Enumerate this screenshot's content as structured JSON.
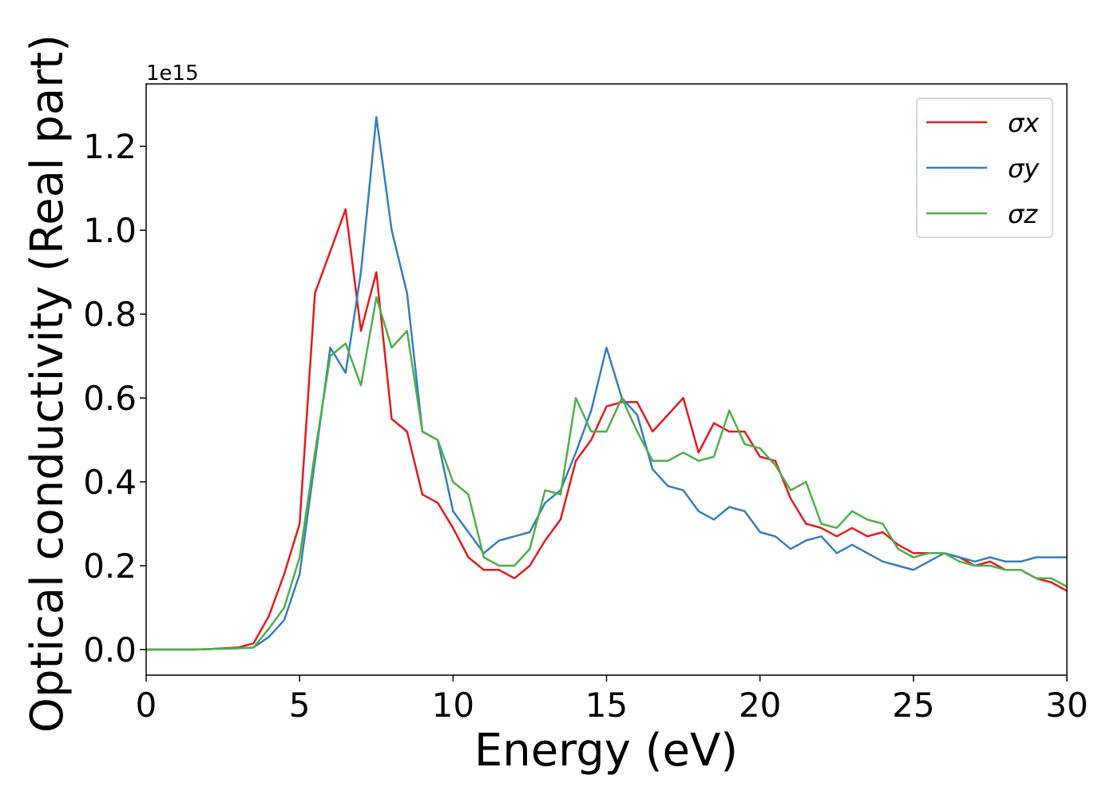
{
  "chart_data": {
    "type": "line",
    "x_label": "Energy (eV)",
    "y_label": "Optical conductivity (Real part)",
    "y_offset_label": "1e15",
    "x": [
      0,
      0.5,
      1,
      1.5,
      2,
      2.5,
      3,
      3.5,
      4,
      4.5,
      5,
      5.5,
      6,
      6.5,
      7,
      7.5,
      8,
      8.5,
      9,
      9.5,
      10,
      10.5,
      11,
      11.5,
      12,
      12.5,
      13,
      13.5,
      14,
      14.5,
      15,
      15.5,
      16,
      16.5,
      17,
      17.5,
      18,
      18.5,
      19,
      19.5,
      20,
      20.5,
      21,
      21.5,
      22,
      22.5,
      23,
      23.5,
      24,
      24.5,
      25,
      25.5,
      26,
      26.5,
      27,
      27.5,
      28,
      28.5,
      29,
      29.5,
      30
    ],
    "series": [
      {
        "name": "σx",
        "color": "#e41a1c",
        "values": [
          0,
          0,
          0,
          0,
          0.001,
          0.003,
          0.005,
          0.015,
          0.08,
          0.18,
          0.3,
          0.85,
          0.95,
          1.05,
          0.76,
          0.9,
          0.55,
          0.52,
          0.37,
          0.35,
          0.29,
          0.22,
          0.19,
          0.19,
          0.17,
          0.2,
          0.26,
          0.31,
          0.45,
          0.5,
          0.58,
          0.59,
          0.59,
          0.52,
          0.56,
          0.6,
          0.47,
          0.54,
          0.52,
          0.52,
          0.46,
          0.45,
          0.36,
          0.3,
          0.29,
          0.27,
          0.29,
          0.27,
          0.28,
          0.25,
          0.23,
          0.23,
          0.23,
          0.22,
          0.2,
          0.21,
          0.19,
          0.19,
          0.17,
          0.16,
          0.14
        ]
      },
      {
        "name": "σy",
        "color": "#377eb8",
        "values": [
          0,
          0,
          0,
          0,
          0.001,
          0.002,
          0.003,
          0.005,
          0.03,
          0.07,
          0.18,
          0.45,
          0.72,
          0.66,
          0.9,
          1.27,
          1.0,
          0.85,
          0.52,
          0.5,
          0.33,
          0.28,
          0.23,
          0.26,
          0.27,
          0.28,
          0.35,
          0.38,
          0.47,
          0.57,
          0.72,
          0.6,
          0.56,
          0.43,
          0.39,
          0.38,
          0.33,
          0.31,
          0.34,
          0.33,
          0.28,
          0.27,
          0.24,
          0.26,
          0.27,
          0.23,
          0.25,
          0.23,
          0.21,
          0.2,
          0.19,
          0.21,
          0.23,
          0.22,
          0.21,
          0.22,
          0.21,
          0.21,
          0.22,
          0.22,
          0.22
        ]
      },
      {
        "name": "σz",
        "color": "#4daf4a",
        "values": [
          0,
          0,
          0,
          0,
          0.001,
          0.002,
          0.003,
          0.005,
          0.05,
          0.1,
          0.22,
          0.47,
          0.7,
          0.73,
          0.63,
          0.84,
          0.72,
          0.76,
          0.52,
          0.5,
          0.4,
          0.37,
          0.22,
          0.2,
          0.2,
          0.24,
          0.38,
          0.37,
          0.6,
          0.52,
          0.52,
          0.6,
          0.52,
          0.45,
          0.45,
          0.47,
          0.45,
          0.46,
          0.57,
          0.49,
          0.48,
          0.44,
          0.38,
          0.4,
          0.3,
          0.29,
          0.33,
          0.31,
          0.3,
          0.24,
          0.22,
          0.23,
          0.23,
          0.21,
          0.2,
          0.2,
          0.19,
          0.19,
          0.17,
          0.17,
          0.15
        ]
      }
    ],
    "xlim": [
      0,
      30
    ],
    "xticks": [
      0,
      5,
      10,
      15,
      20,
      25,
      30
    ],
    "ylim": [
      -0.061,
      1.349
    ],
    "yticks": [
      {
        "value": 0,
        "label": "0.0"
      },
      0.2,
      0.4,
      0.6,
      0.8,
      {
        "value": 1,
        "label": "1.0"
      },
      1.2
    ],
    "legend": "upper right"
  }
}
